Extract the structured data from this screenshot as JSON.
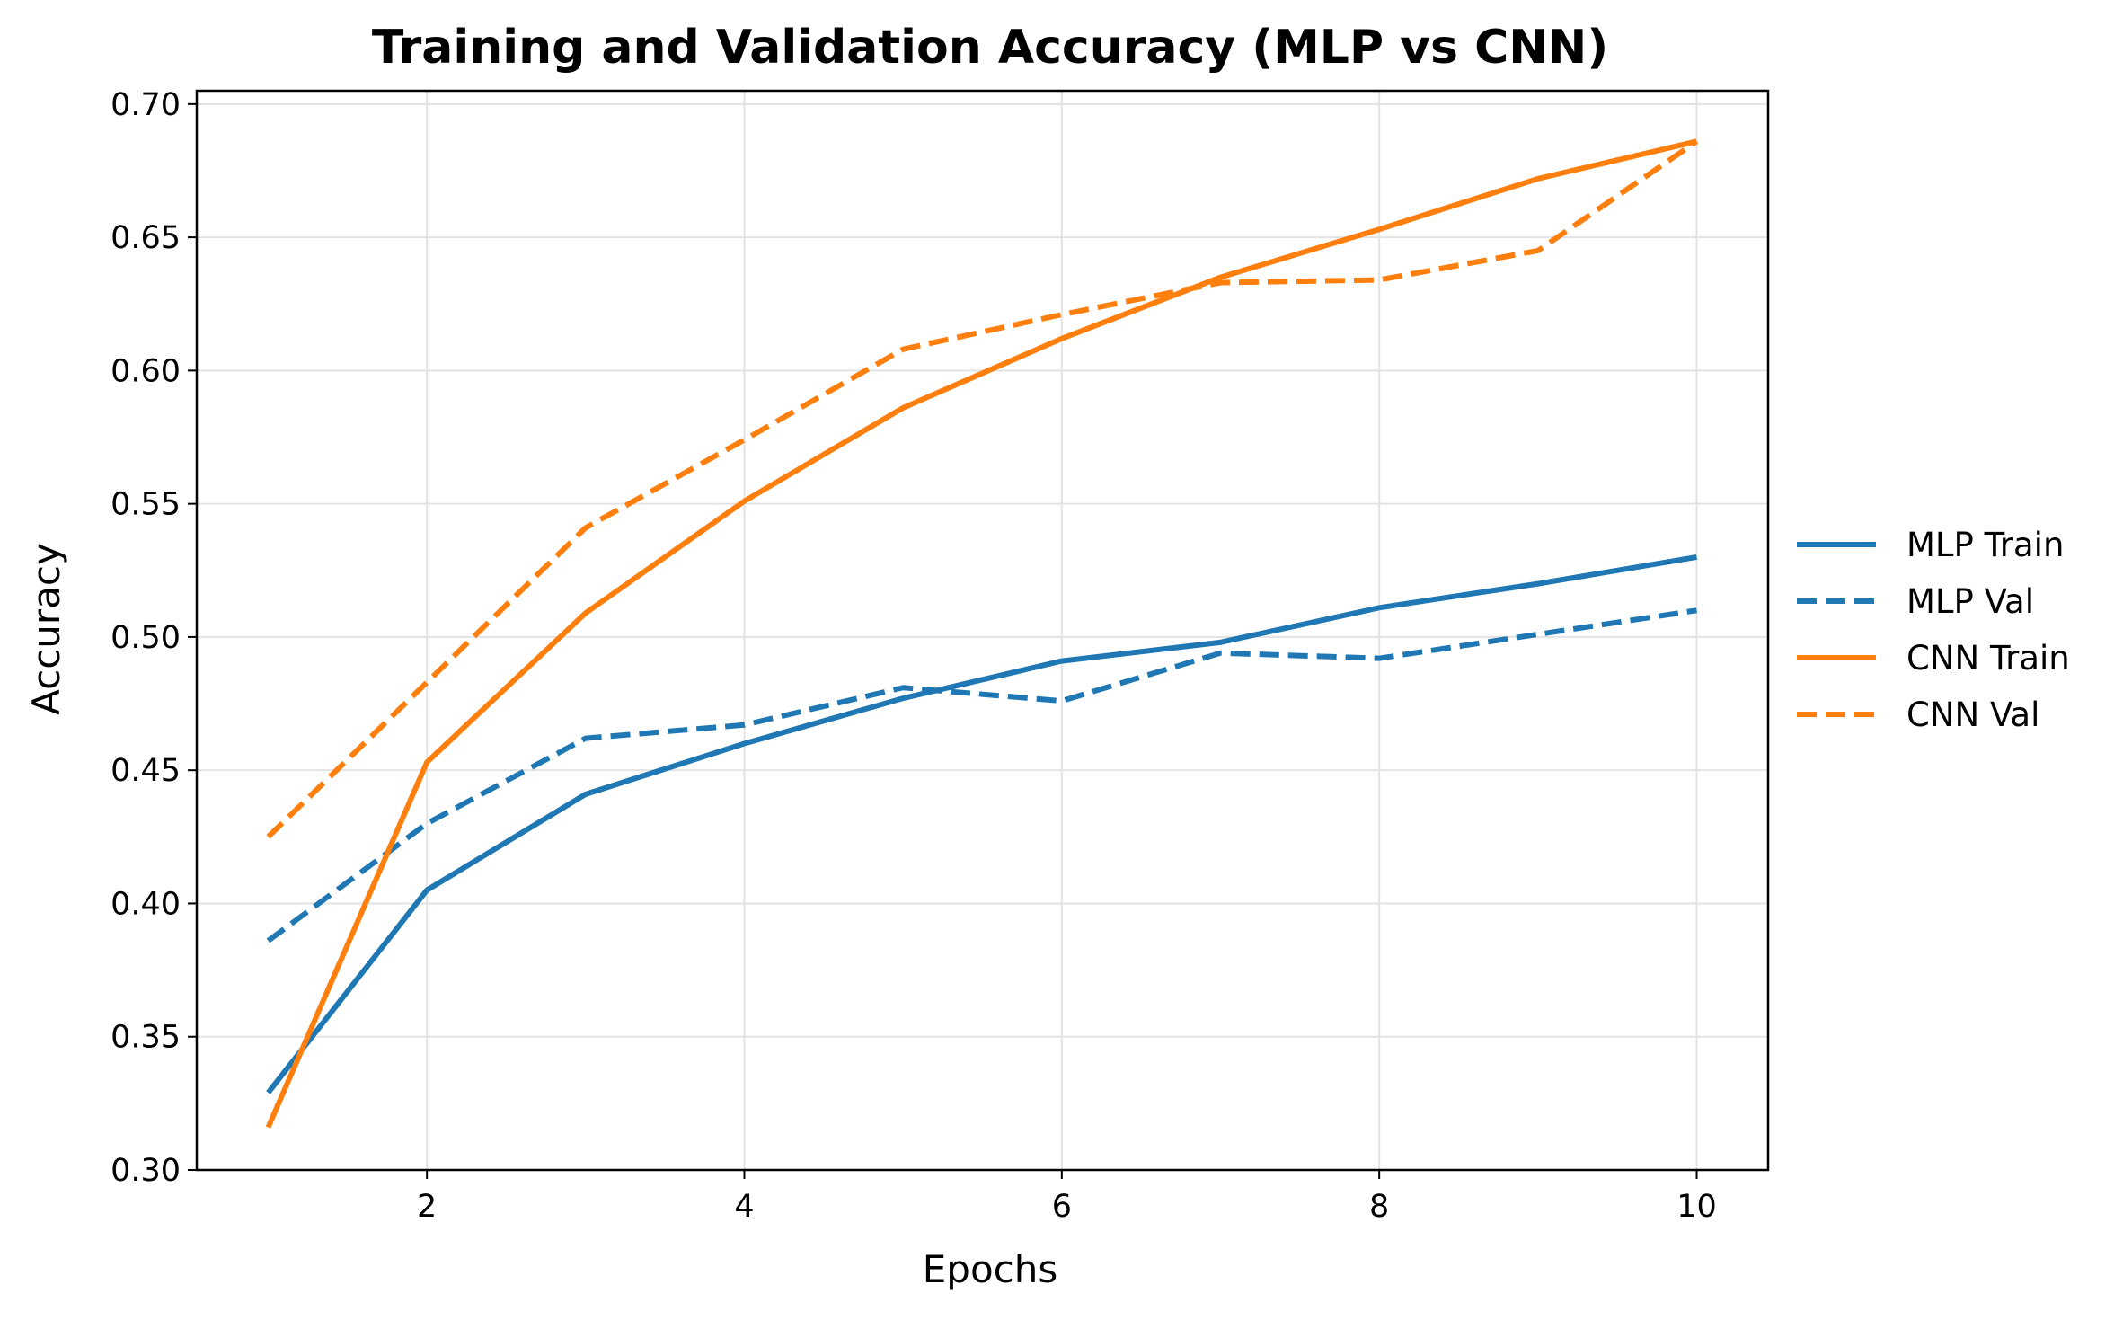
{
  "chart_data": {
    "type": "line",
    "title": "Training and Validation Accuracy (MLP vs CNN)",
    "xlabel": "Epochs",
    "ylabel": "Accuracy",
    "x": [
      1,
      2,
      3,
      4,
      5,
      6,
      7,
      8,
      9,
      10
    ],
    "xlim": [
      0.55,
      10.45
    ],
    "ylim": [
      0.3,
      0.705
    ],
    "xticks": [
      2,
      4,
      6,
      8,
      10
    ],
    "xtick_labels": [
      "2",
      "4",
      "6",
      "8",
      "10"
    ],
    "yticks": [
      0.3,
      0.35,
      0.4,
      0.45,
      0.5,
      0.55,
      0.6,
      0.65,
      0.7
    ],
    "ytick_labels": [
      "0.30",
      "0.35",
      "0.40",
      "0.45",
      "0.50",
      "0.55",
      "0.60",
      "0.65",
      "0.70"
    ],
    "grid": true,
    "legend_position": "right, outside plot, centered vertically",
    "series": [
      {
        "name": "MLP Train",
        "color": "#1f77b4",
        "dash": "solid",
        "values": [
          0.329,
          0.405,
          0.441,
          0.46,
          0.477,
          0.491,
          0.498,
          0.511,
          0.52,
          0.53
        ]
      },
      {
        "name": "MLP Val",
        "color": "#1f77b4",
        "dash": "dashed",
        "values": [
          0.386,
          0.43,
          0.462,
          0.467,
          0.481,
          0.476,
          0.494,
          0.492,
          0.501,
          0.51
        ]
      },
      {
        "name": "CNN Train",
        "color": "#ff7f0e",
        "dash": "solid",
        "values": [
          0.316,
          0.453,
          0.509,
          0.551,
          0.586,
          0.612,
          0.635,
          0.653,
          0.672,
          0.686
        ]
      },
      {
        "name": "CNN Val",
        "color": "#ff7f0e",
        "dash": "dashed",
        "values": [
          0.425,
          0.483,
          0.541,
          0.574,
          0.608,
          0.621,
          0.633,
          0.634,
          0.645,
          0.686
        ]
      }
    ]
  }
}
